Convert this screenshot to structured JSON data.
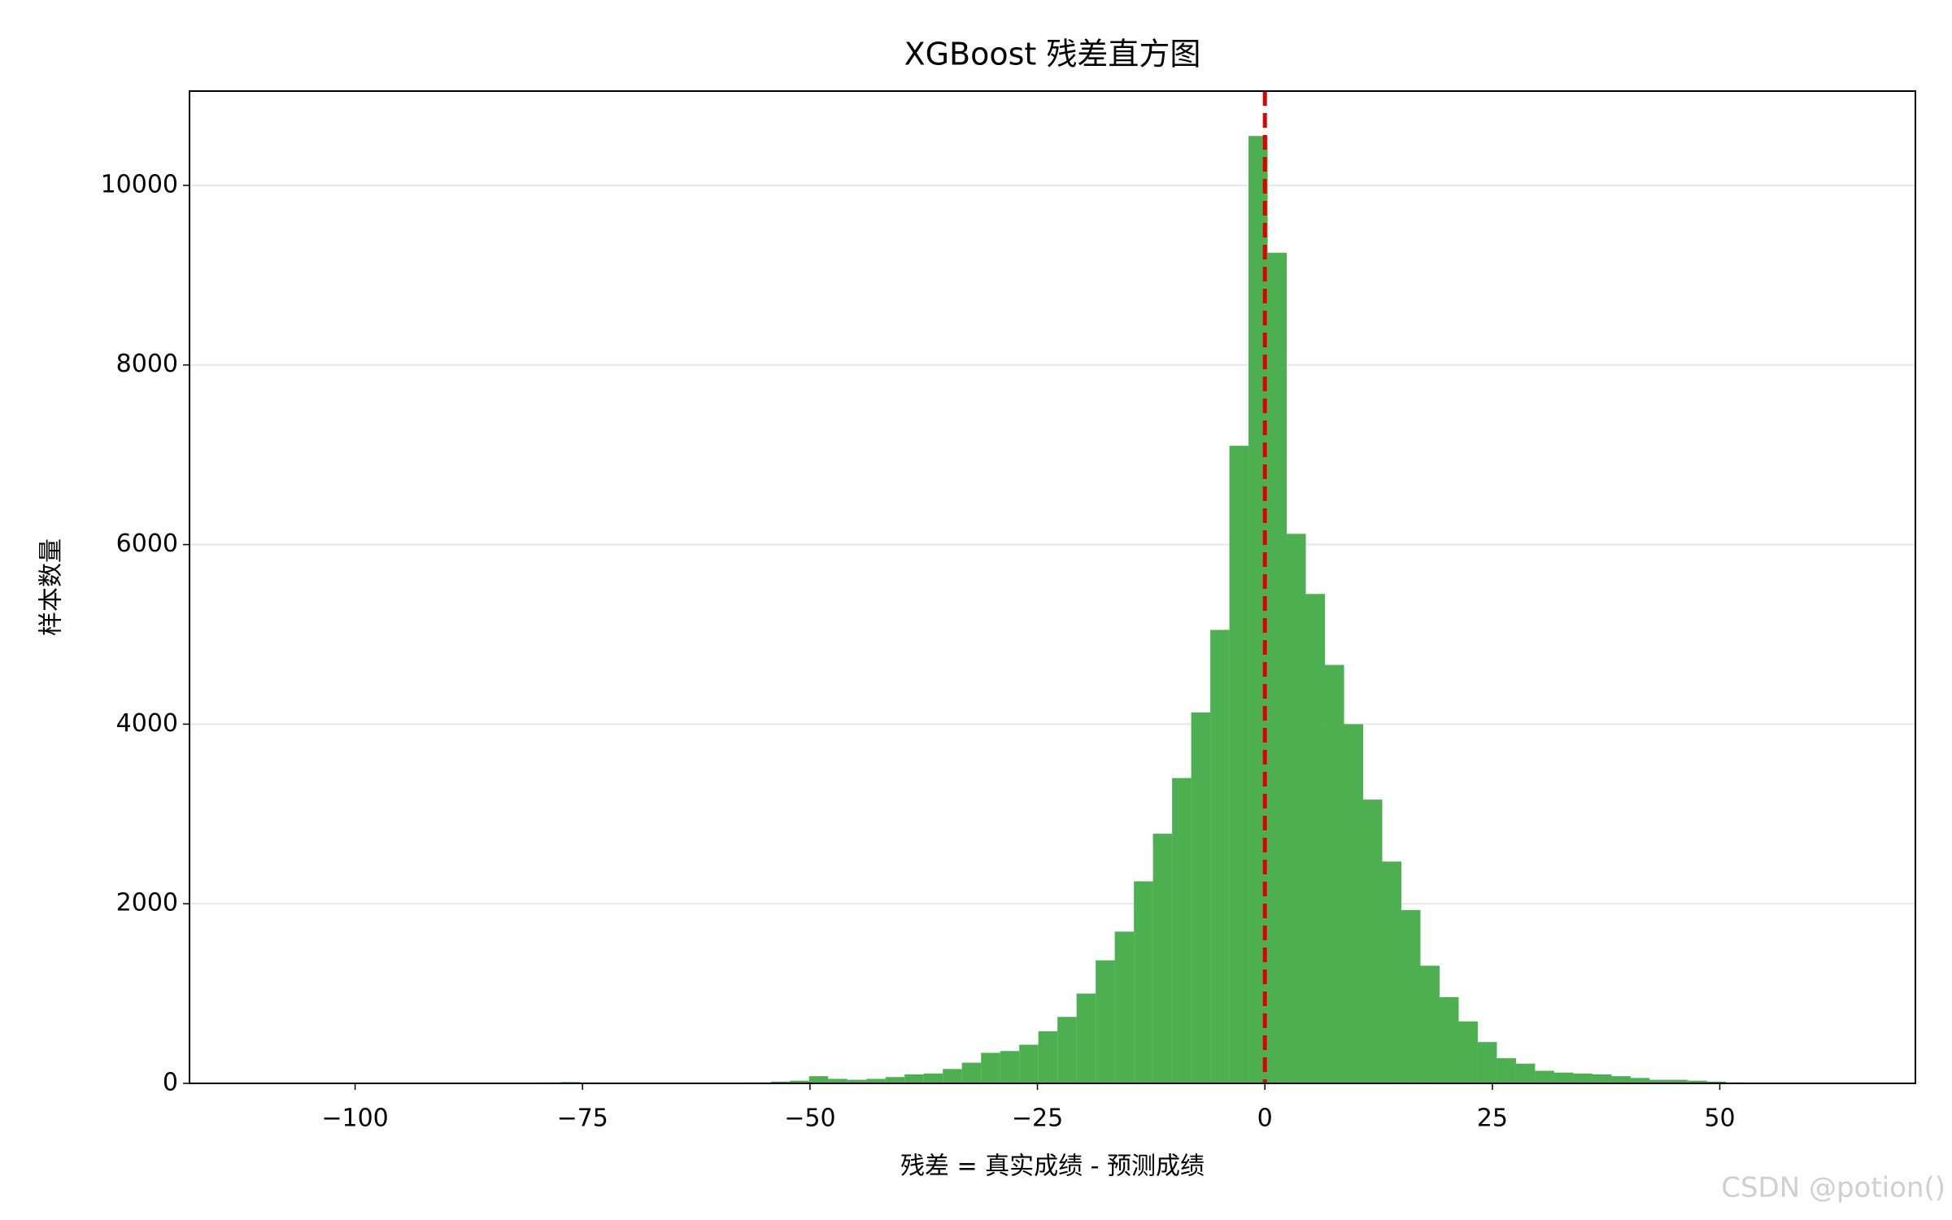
{
  "chart_data": {
    "type": "histogram",
    "title": "XGBoost 残差直方图",
    "x_label": "残差 = 真实成绩 - 预测成绩",
    "y_label": "样本数量",
    "bins": [
      -111.0,
      -108.9,
      -106.8,
      -104.7,
      -102.6,
      -100.5,
      -98.4,
      -96.3,
      -94.2,
      -92.1,
      -90.0,
      -87.9,
      -85.8,
      -83.7,
      -81.6,
      -79.5,
      -77.4,
      -75.3,
      -73.2,
      -71.1,
      -69.0,
      -66.9,
      -64.8,
      -62.7,
      -60.6,
      -58.5,
      -56.4,
      -54.3,
      -52.2,
      -50.1,
      -48.0,
      -45.9,
      -43.8,
      -41.7,
      -39.6,
      -37.5,
      -35.4,
      -33.3,
      -31.2,
      -29.1,
      -27.0,
      -24.9,
      -22.8,
      -20.7,
      -18.6,
      -16.5,
      -14.4,
      -12.3,
      -10.2,
      -8.1,
      -6.0,
      -3.9,
      -1.8,
      0.3,
      2.4,
      4.5,
      6.6,
      8.7,
      10.8,
      12.9,
      15.0,
      17.1,
      19.2,
      21.3,
      23.4,
      25.5,
      27.6,
      29.7,
      31.8,
      33.9,
      36.0,
      38.1,
      40.2,
      42.3,
      44.4,
      46.5,
      48.6,
      50.7,
      52.8
    ],
    "values": [
      0,
      0,
      0,
      0,
      0,
      3,
      0,
      0,
      0,
      0,
      0,
      0,
      0,
      0,
      0,
      10,
      15,
      10,
      0,
      0,
      0,
      0,
      0,
      0,
      0,
      0,
      10,
      20,
      30,
      80,
      50,
      40,
      50,
      70,
      100,
      110,
      160,
      230,
      340,
      360,
      430,
      580,
      740,
      1000,
      1370,
      1690,
      2250,
      2780,
      3400,
      4130,
      5050,
      7100,
      10550,
      9250,
      6120,
      5450,
      4660,
      4000,
      3160,
      2470,
      1930,
      1310,
      960,
      690,
      460,
      280,
      220,
      140,
      120,
      110,
      100,
      80,
      60,
      40,
      40,
      30,
      20,
      10
    ],
    "color": "#4caf50",
    "vline": {
      "value": 0,
      "color": "#e00000"
    },
    "xlim": [
      -118.2,
      71.5
    ],
    "ylim": [
      0,
      11050
    ],
    "xticks": [
      {
        "value": -100,
        "label": "−100"
      },
      {
        "value": -75,
        "label": "−75"
      },
      {
        "value": -50,
        "label": "−50"
      },
      {
        "value": -25,
        "label": "−25"
      },
      0,
      25,
      50
    ],
    "yticks": [
      0,
      2000,
      4000,
      6000,
      8000,
      10000
    ],
    "grid": true,
    "watermark": "CSDN @potion()"
  }
}
